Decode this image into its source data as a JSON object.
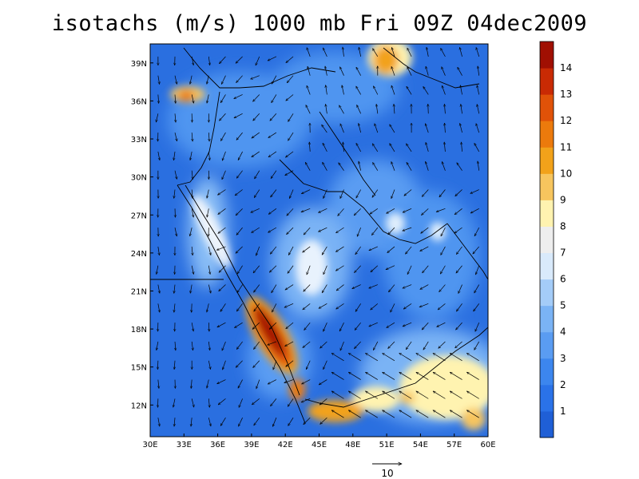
{
  "title": "isotachs (m/s) 1000 mb Fri 09Z 04dec2009",
  "map": {
    "lon_range": [
      30,
      60
    ],
    "lat_range": [
      9.5,
      40.5
    ],
    "lon_ticks": [
      "30E",
      "33E",
      "36E",
      "39E",
      "42E",
      "45E",
      "48E",
      "51E",
      "54E",
      "57E",
      "60E"
    ],
    "lat_ticks": [
      "12N",
      "15N",
      "18N",
      "21N",
      "24N",
      "27N",
      "30N",
      "33N",
      "36N",
      "39N"
    ],
    "variable": "wind speed isotachs with wind vectors"
  },
  "colorbar": {
    "labels": [
      "1",
      "2",
      "3",
      "4",
      "5",
      "6",
      "7",
      "8",
      "9",
      "10",
      "11",
      "12",
      "13",
      "14"
    ],
    "colors": [
      "#1f5fd6",
      "#2a72e8",
      "#3c86ee",
      "#5a9cf2",
      "#7ab3f5",
      "#a4ccf8",
      "#d9eafb",
      "#eeeeee",
      "#fff3b0",
      "#f7c55e",
      "#f2a21a",
      "#ec7a0c",
      "#e05208",
      "#c92a04",
      "#a00f02"
    ]
  },
  "reference_vector": {
    "label": "10"
  },
  "chart_data": {
    "type": "heatmap",
    "title": "isotachs (m/s) 1000 mb Fri 09Z 04dec2009",
    "x_range": [
      30,
      60
    ],
    "y_range": [
      9.5,
      40.5
    ],
    "value_range": [
      0,
      15
    ],
    "hotspots": [
      {
        "lon": 40.3,
        "lat": 17.3,
        "peak_ms": 14
      },
      {
        "lon": 43.0,
        "lat": 13.2,
        "peak_ms": 12
      },
      {
        "lon": 46.5,
        "lat": 11.5,
        "peak_ms": 10
      },
      {
        "lon": 51.3,
        "lat": 39.5,
        "peak_ms": 10
      },
      {
        "lon": 33.5,
        "lat": 36.0,
        "peak_ms": 9
      },
      {
        "lon": 58.8,
        "lat": 11.0,
        "peak_ms": 9
      },
      {
        "lon": 53.0,
        "lat": 13.5,
        "peak_ms": 9
      }
    ]
  }
}
